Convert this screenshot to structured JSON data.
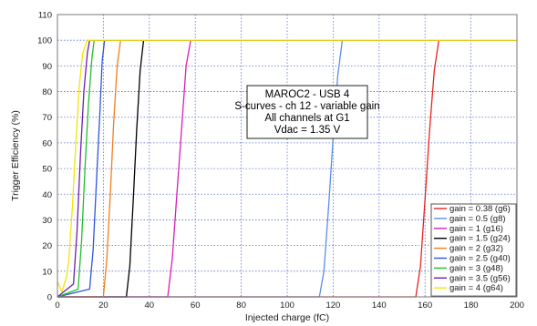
{
  "chart_data": {
    "type": "line",
    "title": "",
    "xlabel": "Injected charge (fC)",
    "ylabel": "Trigger Efficiency (%)",
    "xlim": [
      0,
      200
    ],
    "ylim": [
      0,
      110
    ],
    "x_ticks": [
      0,
      20,
      40,
      60,
      80,
      100,
      120,
      140,
      160,
      180,
      200
    ],
    "y_ticks": [
      0,
      10,
      20,
      30,
      40,
      50,
      60,
      70,
      80,
      90,
      100,
      110
    ],
    "grid": true,
    "legend_position": "bottom-right",
    "annotation": [
      "MAROC2 - USB 4",
      "S-curves - ch 12 - variable gain",
      "All channels at G1",
      "Vdac = 1.35 V"
    ],
    "series": [
      {
        "name": "gain = 0.38 (g6)",
        "color": "#e8231f",
        "x": [
          0,
          156,
          158,
          160,
          162,
          164,
          166,
          200
        ],
        "y": [
          0,
          0,
          12,
          38,
          65,
          88,
          100,
          100
        ]
      },
      {
        "name": "gain = 0.5 (g8)",
        "color": "#5b8ee6",
        "x": [
          0,
          114,
          116,
          118,
          120,
          122,
          124,
          200
        ],
        "y": [
          0,
          0,
          10,
          35,
          62,
          86,
          100,
          100
        ]
      },
      {
        "name": "gain = 1 (g16)",
        "color": "#d61fb8",
        "x": [
          0,
          48,
          50,
          52,
          54,
          56,
          58,
          200
        ],
        "y": [
          0,
          0,
          15,
          40,
          65,
          90,
          100,
          100
        ]
      },
      {
        "name": "gain = 1.5 (g24)",
        "color": "#000000",
        "x": [
          0,
          30,
          31.5,
          33,
          34.5,
          36,
          37.5,
          200
        ],
        "y": [
          0,
          0,
          12,
          38,
          65,
          88,
          100,
          100
        ]
      },
      {
        "name": "gain = 2 (g32)",
        "color": "#f07f1e",
        "x": [
          0,
          20,
          21.5,
          23,
          24.5,
          26,
          27.5,
          200
        ],
        "y": [
          0,
          0,
          15,
          40,
          68,
          90,
          100,
          100
        ]
      },
      {
        "name": "gain = 2.5 (g40)",
        "color": "#2d55e0",
        "x": [
          0,
          14,
          15.5,
          17,
          18.5,
          19.5,
          20.5,
          200
        ],
        "y": [
          0,
          3,
          18,
          45,
          72,
          92,
          100,
          100
        ]
      },
      {
        "name": "gain = 3 (g48)",
        "color": "#1fbf2e",
        "x": [
          0,
          9,
          10.5,
          12,
          13.5,
          15,
          16,
          200
        ],
        "y": [
          0,
          3,
          22,
          50,
          75,
          93,
          100,
          100
        ]
      },
      {
        "name": "gain = 3.5 (g56)",
        "color": "#6a1fb0",
        "x": [
          0,
          7,
          8.5,
          10,
          11.5,
          13,
          14,
          200
        ],
        "y": [
          0,
          5,
          25,
          55,
          80,
          95,
          100,
          100
        ]
      },
      {
        "name": "gain = 4 (g64)",
        "color": "#f2e40c",
        "x": [
          0,
          2,
          4,
          5,
          6.5,
          8,
          9.5,
          11,
          13,
          200
        ],
        "y": [
          6,
          2,
          8,
          15,
          35,
          60,
          82,
          95,
          100,
          100
        ]
      }
    ]
  }
}
